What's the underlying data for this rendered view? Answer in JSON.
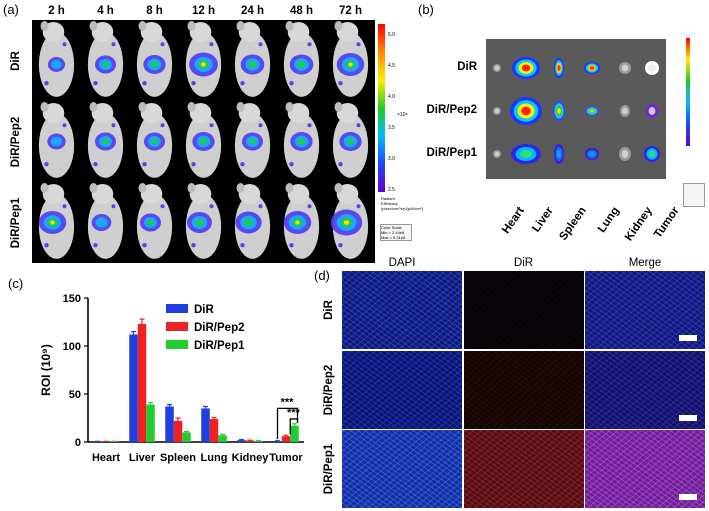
{
  "panel_a": {
    "letter": "(a)",
    "timepoints": [
      "2 h",
      "4 h",
      "8 h",
      "12 h",
      "24 h",
      "48 h",
      "72 h"
    ],
    "rows": [
      "DiR",
      "DiR/Pep2",
      "DiR/Pep1"
    ],
    "colorbar": {
      "ticks": [
        "5.0",
        "4.5",
        "4.0",
        "3.5",
        "3.0",
        "2.5"
      ],
      "exponent": "×10⁸",
      "title": "Radiant Efficiency",
      "units": "(p/sec/cm²/sr)/(μW/cm²)",
      "scale_title": "Color Scale",
      "scale_min": "Min = 2.44e8",
      "scale_max": "Max = 5.31e8"
    }
  },
  "panel_b": {
    "letter": "(b)",
    "rows": [
      "DiR",
      "DiR/Pep2",
      "DiR/Pep1"
    ],
    "organs": [
      "Heart",
      "Liver",
      "Spleen",
      "Lung",
      "Kidney",
      "Tumor"
    ]
  },
  "panel_c": {
    "letter": "(c)"
  },
  "panel_d": {
    "letter": "(d)",
    "columns": [
      "DAPI",
      "DiR",
      "Merge"
    ],
    "rows": [
      "DiR",
      "DiR/Pep2",
      "DiR/Pep1"
    ]
  },
  "chart_data": {
    "type": "bar",
    "ylabel": "ROI (10⁹)",
    "ylim": [
      0,
      150
    ],
    "yticks": [
      0,
      50,
      100,
      150
    ],
    "categories": [
      "Heart",
      "Liver",
      "Spleen",
      "Lung",
      "Kidney",
      "Tumor"
    ],
    "series": [
      {
        "name": "DiR",
        "color": "#1f3fe0",
        "values": [
          0.5,
          112,
          37,
          35,
          2,
          1
        ],
        "errors": [
          0.2,
          3,
          2,
          2,
          0.5,
          0.3
        ]
      },
      {
        "name": "DiR/Pep2",
        "color": "#ee2222",
        "values": [
          0.5,
          123,
          22,
          24,
          1.5,
          6
        ],
        "errors": [
          0.2,
          5,
          3,
          1.5,
          0.4,
          1
        ]
      },
      {
        "name": "DiR/Pep1",
        "color": "#22cc33",
        "values": [
          0.5,
          39,
          10,
          7,
          1,
          17
        ],
        "errors": [
          0.2,
          2,
          1,
          1,
          0.3,
          2
        ]
      }
    ],
    "significance": [
      "***",
      "***"
    ],
    "legend_position": "top-right"
  }
}
